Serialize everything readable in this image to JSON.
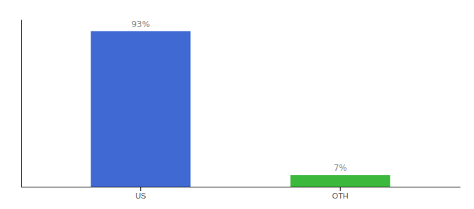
{
  "chart_data": {
    "type": "bar",
    "categories": [
      "US",
      "OTH"
    ],
    "values": [
      93,
      7
    ],
    "value_labels": [
      "93%",
      "7%"
    ],
    "colors": [
      "#4169d4",
      "#3cb83c"
    ],
    "ylim": [
      0,
      100
    ],
    "data_labels": true,
    "tick_labels": "x"
  }
}
